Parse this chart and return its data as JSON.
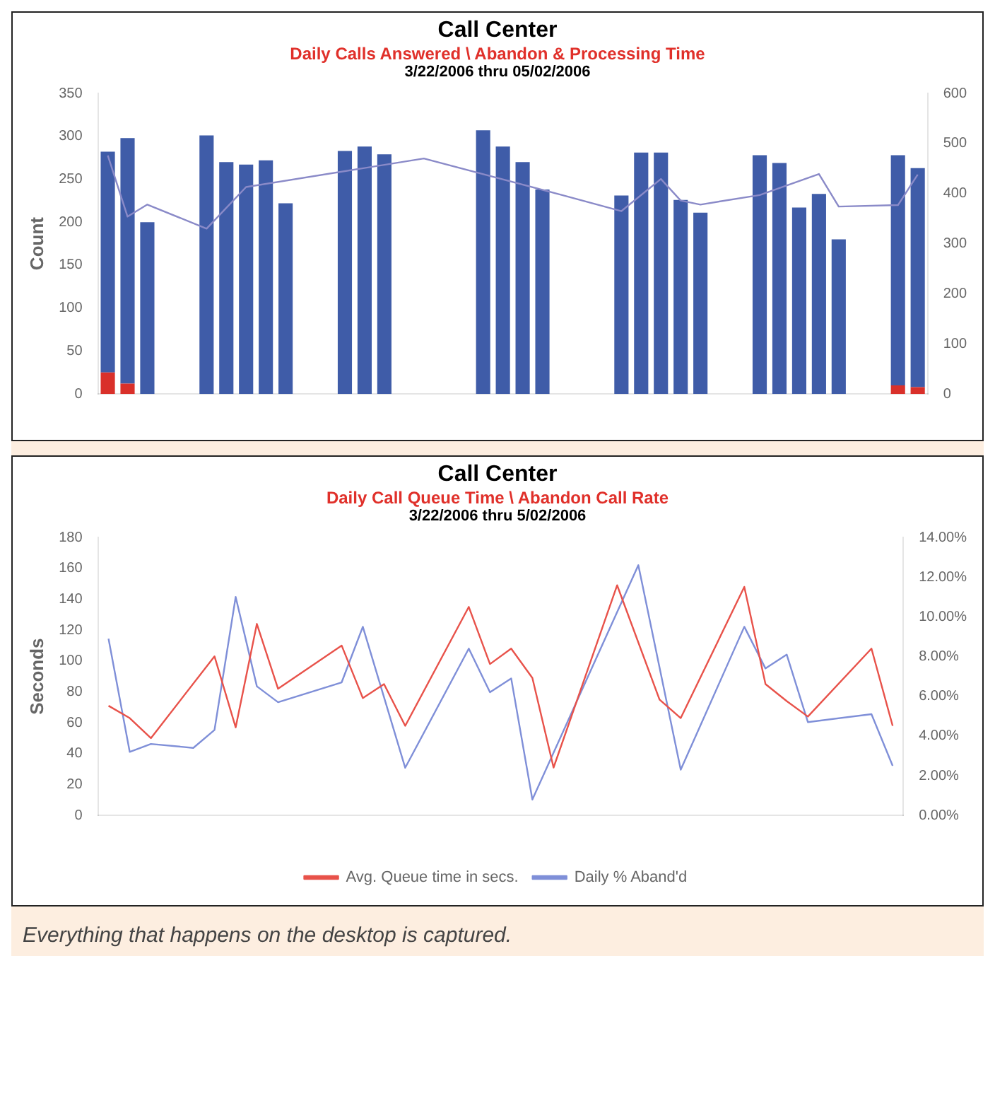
{
  "chart_data": [
    {
      "type": "bar",
      "title": "Call Center",
      "subtitle": "Daily Calls Answered \\ Abandon & Processing Time",
      "annotations": [
        "3/22/2006 thru 05/02/2006"
      ],
      "ylabel": "Count",
      "categories": [
        null,
        null,
        null,
        null,
        null,
        null,
        null,
        null,
        null,
        null,
        null,
        null,
        null,
        null,
        null,
        null,
        null,
        null,
        null,
        null,
        null,
        null,
        null,
        null,
        null,
        null,
        null,
        null,
        null,
        null,
        null,
        null,
        null,
        null,
        null,
        null,
        null,
        null,
        null,
        null,
        null,
        null
      ],
      "stacked": true,
      "ylim": [
        0,
        350
      ],
      "yticks": [
        0,
        50,
        100,
        150,
        200,
        250,
        300,
        350
      ],
      "y2lim": [
        0,
        600
      ],
      "y2ticks": [
        0,
        100,
        200,
        300,
        400,
        500,
        600
      ],
      "grid": false,
      "legend": false,
      "marker": "none",
      "series": [
        {
          "color": "#d9302a",
          "values": [
            25,
            12,
            null,
            null,
            null,
            null,
            null,
            null,
            null,
            null,
            null,
            null,
            null,
            null,
            null,
            null,
            null,
            null,
            null,
            null,
            null,
            null,
            null,
            null,
            null,
            null,
            null,
            null,
            null,
            null,
            null,
            null,
            null,
            null,
            null,
            null,
            null,
            null,
            null,
            null,
            10,
            8
          ]
        },
        {
          "color": "#3f5ca8",
          "values": [
            257,
            286,
            200,
            null,
            null,
            301,
            270,
            267,
            272,
            222,
            null,
            null,
            283,
            288,
            279,
            null,
            null,
            null,
            null,
            307,
            288,
            270,
            238,
            null,
            null,
            null,
            231,
            281,
            281,
            226,
            211,
            null,
            null,
            278,
            269,
            217,
            233,
            180,
            null,
            null,
            268,
            255
          ]
        },
        {
          "type": "line",
          "axis": "y2",
          "color": "#8a8ac8",
          "values": [
            476,
            354,
            378,
            null,
            null,
            330,
            null,
            413,
            null,
            null,
            null,
            null,
            null,
            null,
            null,
            null,
            470,
            null,
            null,
            null,
            null,
            null,
            null,
            397,
            null,
            null,
            365,
            null,
            429,
            386,
            378,
            null,
            null,
            397,
            null,
            null,
            439,
            374,
            null,
            null,
            377,
            438
          ]
        }
      ]
    },
    {
      "type": "line",
      "title": "Call Center",
      "subtitle": "Daily Call Queue Time \\ Abandon Call Rate",
      "annotations": [
        "3/22/2006 thru 5/02/2006",
        "Everything that happens on the desktop is captured."
      ],
      "ylabel": "Seconds",
      "categories": [
        null,
        null,
        null,
        null,
        null,
        null,
        null,
        null,
        null,
        null,
        null,
        null,
        null,
        null,
        null,
        null,
        null,
        null,
        null,
        null,
        null,
        null,
        null,
        null,
        null,
        null,
        null,
        null,
        null,
        null,
        null,
        null,
        null,
        null,
        null,
        null,
        null,
        null
      ],
      "ylim": [
        0,
        180
      ],
      "yticks": [
        0,
        20,
        40,
        60,
        80,
        100,
        120,
        140,
        160,
        180
      ],
      "y2lim": [
        0,
        14
      ],
      "y2ticks": [
        {
          "value": 0,
          "label": "0.00%"
        },
        {
          "value": 2,
          "label": "2.00%"
        },
        {
          "value": 4,
          "label": "4.00%"
        },
        {
          "value": 6,
          "label": "6.00%"
        },
        {
          "value": 8,
          "label": "8.00%"
        },
        {
          "value": 10,
          "label": "10.00%"
        },
        {
          "value": 12,
          "label": "12.00%"
        },
        {
          "value": 14,
          "label": "14.00%"
        }
      ],
      "grid": false,
      "legend": "bottom",
      "marker": "none",
      "series": [
        {
          "name": "Avg. Queue time in secs.",
          "color": "#e8524a",
          "values": [
            71,
            63,
            50,
            null,
            null,
            103,
            57,
            124,
            82,
            null,
            null,
            110,
            76,
            85,
            58,
            null,
            null,
            135,
            98,
            108,
            89,
            31,
            null,
            null,
            149,
            null,
            75,
            63,
            null,
            null,
            148,
            85,
            74,
            64,
            null,
            null,
            108,
            58
          ]
        },
        {
          "name": "Daily % Aband'd",
          "axis": "y2",
          "color": "#7f8fd8",
          "values": [
            8.9,
            3.2,
            3.6,
            null,
            3.4,
            4.3,
            11.0,
            6.5,
            5.7,
            null,
            null,
            6.7,
            9.5,
            null,
            2.4,
            null,
            null,
            8.4,
            6.2,
            6.9,
            0.8,
            null,
            null,
            null,
            null,
            12.6,
            null,
            2.3,
            null,
            null,
            9.5,
            7.4,
            8.1,
            4.7,
            null,
            null,
            5.1,
            2.5
          ]
        }
      ]
    }
  ]
}
